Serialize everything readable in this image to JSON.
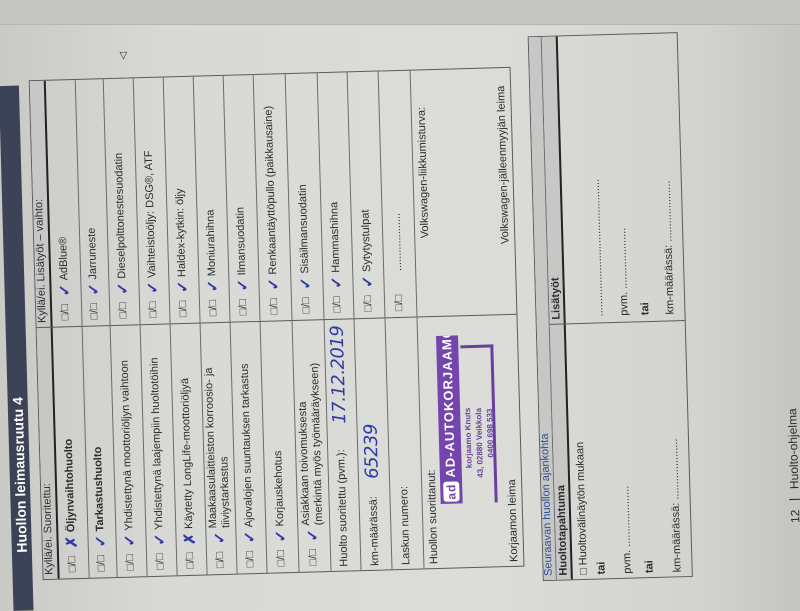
{
  "title": "Huollon leimausruutu 4",
  "checkbox_glyph": "□/□",
  "colors": {
    "title_bar": "#3c4357",
    "ink": "#2f3aa6",
    "stamp": "#6a3fa2",
    "header_fill": "#c7c8c5"
  },
  "service_table": {
    "left_header": "Kyllä/ei. Suoritettu:",
    "right_header": "Kyllä/ei. Lisätyöt – vaihto:",
    "rows": [
      {
        "left": {
          "label": "Öljynvaihtohuolto",
          "bold": true,
          "checkbox": true,
          "mark": "✗",
          "marked": "kyllä"
        },
        "right": {
          "label": "AdBlue®",
          "checkbox": true,
          "mark": "✓",
          "marked": "ei"
        }
      },
      {
        "left": {
          "label": "Tarkastushuolto",
          "bold": true,
          "checkbox": true,
          "mark": "✓",
          "marked": "ei"
        },
        "right": {
          "label": "Jarruneste",
          "checkbox": true,
          "mark": "✓",
          "marked": "kyllä"
        }
      },
      {
        "left": {
          "label": "Yhdistettynä moottoriöljyn vaihtoon",
          "checkbox": true,
          "mark": "✓",
          "marked": "ei"
        },
        "right": {
          "label": "Dieselpolttonestesuodatin",
          "checkbox": true,
          "mark": "✓",
          "marked": "ei"
        }
      },
      {
        "left": {
          "label": "Yhdistettynä laajempiin huoltotöihin",
          "checkbox": true,
          "mark": "✓",
          "marked": "ei"
        },
        "right": {
          "label": "Vaihteistoöljy: DSG®, ATF",
          "checkbox": true,
          "mark": "✓",
          "marked": "ei"
        }
      },
      {
        "left": {
          "label": "Käytetty LongLife-moottoriöljyä",
          "checkbox": true,
          "mark": "✗",
          "marked": "kyllä"
        },
        "right": {
          "label": "Haldex-kytkin: öljy",
          "checkbox": true,
          "mark": "✓",
          "marked": "ei"
        }
      },
      {
        "left": {
          "label": "Maakaasulaitteiston korroosio- ja",
          "label2": "tiiviystarkastus",
          "checkbox": true,
          "mark": "✓",
          "marked": "ei"
        },
        "right": {
          "label": "Moniurahihna",
          "checkbox": true,
          "mark": "✓",
          "marked": "ei"
        }
      },
      {
        "left": {
          "label": "Ajovalojen suuntauksen tarkastus",
          "checkbox": true,
          "mark": "✓",
          "marked": "ei"
        },
        "right": {
          "label": "Ilmansuodatin",
          "checkbox": true,
          "mark": "✓",
          "marked": "ei"
        }
      },
      {
        "left": {
          "label": "Korjauskehotus",
          "checkbox": true,
          "mark": "✓",
          "marked": "ei"
        },
        "right": {
          "label": "Renkaantäyttöpullo (paikkausaine)",
          "checkbox": true,
          "mark": "✓",
          "marked": "ei"
        }
      },
      {
        "left": {
          "label": "Asiakkaan toivomuksesta",
          "label2": "(merkintä myös työmääräykseen)",
          "checkbox": true,
          "mark": "✓",
          "marked": "ei"
        },
        "right": {
          "label": "Sisäilmansuodatin",
          "checkbox": true,
          "mark": "✓",
          "marked": "ei"
        }
      },
      {
        "left": {
          "label": "Huolto suoritettu (pvm.):",
          "checkbox": false,
          "handwritten": "17.12.2019"
        },
        "right": {
          "label": "Hammashihna",
          "checkbox": true,
          "mark": "✓",
          "marked": "ei"
        }
      },
      {
        "left": {
          "label": "km-määrässä:",
          "checkbox": false,
          "handwritten": "65239"
        },
        "right": {
          "label": "Sytytystulpat",
          "checkbox": true,
          "mark": "✓",
          "marked": "kyllä"
        }
      },
      {
        "left": {
          "label": "Laskun numero:",
          "checkbox": false
        },
        "right": {
          "label": "...................",
          "checkbox": true
        }
      }
    ],
    "performed_by_label": "Huollon suorittanut:",
    "workshop_stamp_label": "Korjaamon leima",
    "mobility_label": "Volkswagen-liikkumisturva:",
    "dealer_stamp_label": "Volkswagen-jälleenmyyjän leima"
  },
  "stamp": {
    "logo": "ad",
    "name": "AD-AUTOKORJAAMO",
    "line1": "korjaamo Knuts",
    "line2": "43, 02880 Veikkola",
    "line3": "0400 698 533"
  },
  "next_service": {
    "title": "Seuraavan huollon ajankohta",
    "left_header": "Huoltotapahtuma",
    "right_header": "Lisätyöt",
    "left_lines": [
      {
        "text": "□ Huoltovälinäytön mukaan",
        "bold": false
      },
      {
        "text": "tai",
        "bold": true
      },
      {
        "text": "pvm. ....................",
        "bold": false
      },
      {
        "text": "tai",
        "bold": true
      },
      {
        "text": "km-määrässä: ....................",
        "bold": false
      }
    ],
    "right_lines": [
      {
        "text": ".............................................",
        "bold": false
      },
      {
        "text": "pvm. ....................",
        "bold": false
      },
      {
        "text": "tai",
        "bold": true
      },
      {
        "text": "km-määrässä: ....................",
        "bold": false
      }
    ]
  },
  "footer": {
    "page_number": "12",
    "separator": "|",
    "section": "Huolto-ohjelma",
    "arrow": "◁"
  }
}
